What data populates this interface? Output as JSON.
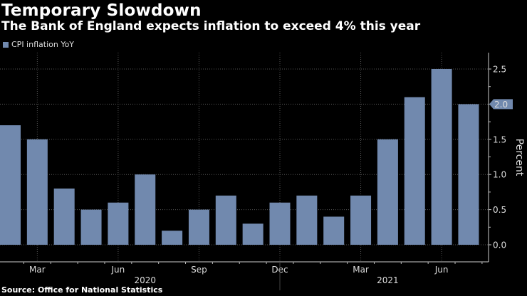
{
  "header": {
    "title": "Temporary Slowdown",
    "subtitle": "The Bank of England expects inflation to exceed 4% this year"
  },
  "footer": {
    "source": "Source: Office for National Statistics"
  },
  "colors": {
    "bar": "#7189ae",
    "background": "#000000",
    "grid": "#555555",
    "text": "#dddddd"
  },
  "chart_data": {
    "type": "bar",
    "title": "Temporary Slowdown",
    "subtitle": "The Bank of England expects inflation to exceed 4% this year",
    "legend": [
      {
        "name": "CPI inflation YoY",
        "color": "#7189ae"
      }
    ],
    "legend_position": "top-left",
    "categories": [
      "Feb 2020",
      "Mar 2020",
      "Apr 2020",
      "May 2020",
      "Jun 2020",
      "Jul 2020",
      "Aug 2020",
      "Sep 2020",
      "Oct 2020",
      "Nov 2020",
      "Dec 2020",
      "Jan 2021",
      "Feb 2021",
      "Mar 2021",
      "Apr 2021",
      "May 2021",
      "Jun 2021",
      "Jul 2021"
    ],
    "series": [
      {
        "name": "CPI inflation YoY",
        "values": [
          1.7,
          1.5,
          0.8,
          0.5,
          0.6,
          1.0,
          0.2,
          0.5,
          0.7,
          0.3,
          0.6,
          0.7,
          0.4,
          0.7,
          1.5,
          2.1,
          2.5,
          2.0
        ]
      }
    ],
    "x_tick_labels": [
      {
        "label": "Mar",
        "category": "Mar 2020"
      },
      {
        "label": "Jun",
        "category": "Jun 2020"
      },
      {
        "label": "Sep",
        "category": "Sep 2020"
      },
      {
        "label": "Dec",
        "category": "Dec 2020"
      },
      {
        "label": "Mar",
        "category": "Mar 2021"
      },
      {
        "label": "Jun",
        "category": "Jun 2021"
      }
    ],
    "year_labels": [
      {
        "label": "2020",
        "center_category": "Jul 2020"
      },
      {
        "label": "2021",
        "center_category": "Apr 2021"
      }
    ],
    "year_divider_after": "Dec 2020",
    "y_ticks": [
      "0.0",
      "0.5",
      "1.0",
      "1.5",
      "2.0",
      "2.5"
    ],
    "ylim": [
      0,
      2.5
    ],
    "ylabel": "Percent",
    "y_axis_side": "right",
    "last_value_label": "2.0",
    "grid": true
  }
}
